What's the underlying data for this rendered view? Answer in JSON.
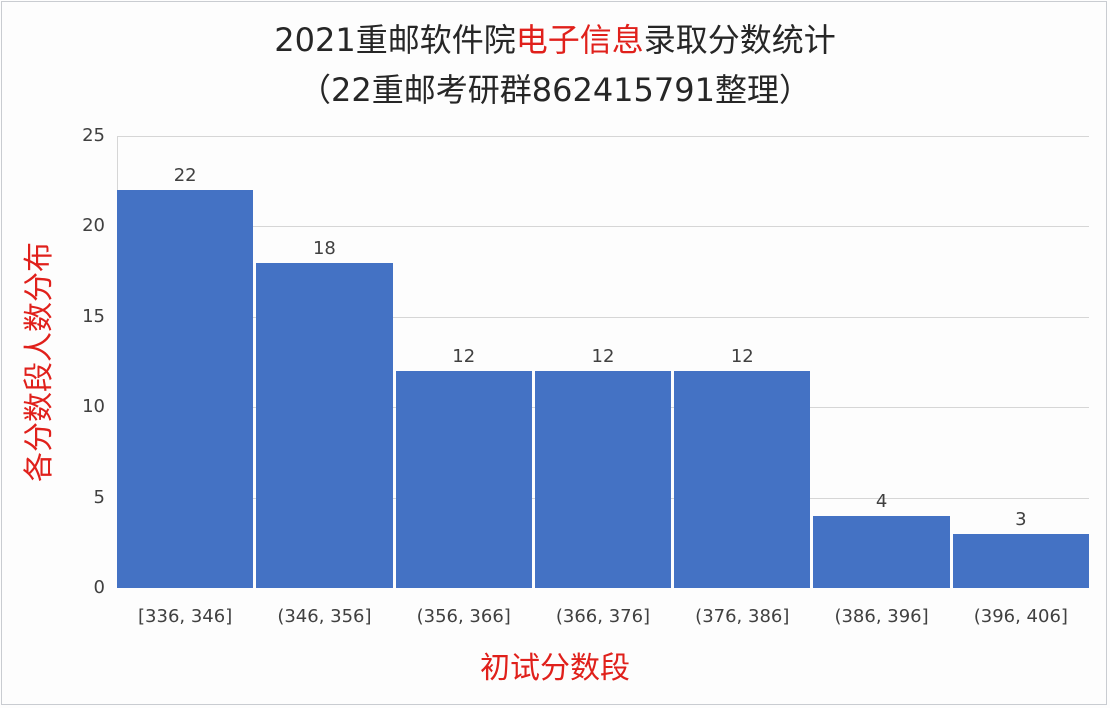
{
  "title": {
    "line1_prefix": "2021重邮软件院",
    "line1_highlight": "电子信息",
    "line1_suffix": "录取分数统计",
    "line2": "（22重邮考研群862415791整理）"
  },
  "colors": {
    "bar": "#4472c4",
    "highlight": "#e0201b",
    "grid": "#d6d6d6",
    "text": "#404040"
  },
  "chart_data": {
    "type": "bar",
    "title": "2021重邮软件院电子信息录取分数统计（22重邮考研群862415791整理）",
    "xlabel": "初试分数段",
    "ylabel": "各分数段人数分布",
    "categories": [
      "[336, 346]",
      "(346, 356]",
      "(356, 366]",
      "(366, 376]",
      "(376, 386]",
      "(386, 396]",
      "(396, 406]"
    ],
    "values": [
      22,
      18,
      12,
      12,
      12,
      4,
      3
    ],
    "ylim": [
      0,
      25
    ],
    "yticks": [
      0,
      5,
      10,
      15,
      20,
      25
    ],
    "grid": true,
    "legend": null,
    "data_labels": true
  },
  "yticks_labels": [
    "0",
    "5",
    "10",
    "15",
    "20",
    "25"
  ],
  "bar_labels": [
    "22",
    "18",
    "12",
    "12",
    "12",
    "4",
    "3"
  ]
}
